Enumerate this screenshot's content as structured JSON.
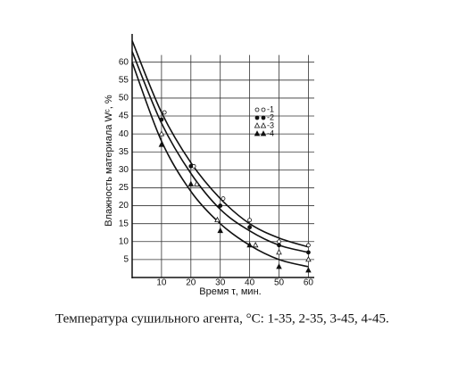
{
  "chart_data": {
    "type": "scatter",
    "xlabel": "Время τ, мин.",
    "ylabel": "Влажность материала Wᶜ, %",
    "caption": "Температура сушильного агента, °C: 1-35, 2-35, 3-45, 4-45.",
    "xlim": [
      0,
      62
    ],
    "ylim": [
      0,
      65
    ],
    "xticks": [
      10,
      20,
      30,
      40,
      50,
      60
    ],
    "yticks": [
      5,
      10,
      15,
      20,
      25,
      30,
      35,
      40,
      45,
      50,
      55,
      60
    ],
    "grid": true,
    "series": [
      {
        "name": "-1",
        "marker": "open-circle",
        "color": "#111",
        "x": [
          11,
          21,
          31,
          40,
          50,
          60
        ],
        "values": [
          46,
          31,
          22,
          16,
          10,
          9
        ]
      },
      {
        "name": "-2",
        "marker": "filled-circle",
        "color": "#111",
        "x": [
          10,
          20,
          30,
          40,
          50,
          60
        ],
        "values": [
          44,
          31,
          20,
          14,
          9,
          7
        ]
      },
      {
        "name": "-3",
        "marker": "open-triangle",
        "color": "#111",
        "x": [
          10,
          22,
          29,
          42,
          50,
          60
        ],
        "values": [
          40,
          26,
          16,
          9,
          7,
          5
        ]
      },
      {
        "name": "-4",
        "marker": "filled-triangle",
        "color": "#111",
        "x": [
          10,
          20,
          30,
          40,
          50,
          60
        ],
        "values": [
          37,
          26,
          13,
          9,
          3,
          2
        ]
      }
    ],
    "curves": [
      {
        "x": [
          0,
          10,
          20,
          30,
          40,
          50,
          60
        ],
        "values": [
          66,
          46,
          32,
          22,
          15,
          11,
          8.5
        ]
      },
      {
        "x": [
          0,
          10,
          20,
          30,
          40,
          50,
          60
        ],
        "values": [
          63,
          43,
          29,
          19,
          13,
          9,
          7
        ]
      },
      {
        "x": [
          0,
          10,
          20,
          30,
          40,
          50,
          60
        ],
        "values": [
          60,
          38,
          24,
          15,
          9,
          5,
          3
        ]
      }
    ]
  }
}
